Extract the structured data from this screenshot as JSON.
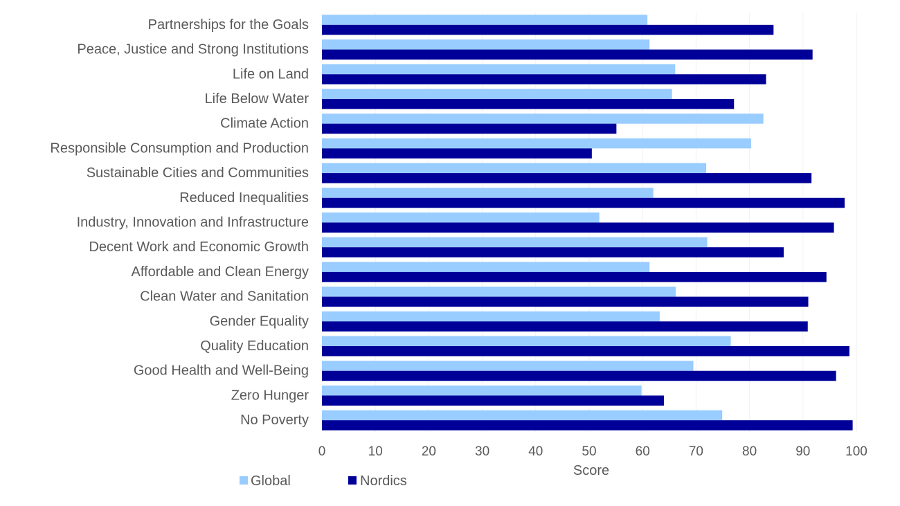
{
  "chart_data": {
    "type": "bar",
    "orientation": "horizontal",
    "categories": [
      "No Poverty",
      "Zero Hunger",
      "Good Health and Well-Being",
      "Quality Education",
      "Gender Equality",
      "Clean Water and Sanitation",
      "Affordable and Clean Energy",
      "Decent Work and Economic Growth",
      "Industry, Innovation and Infrastructure",
      "Reduced Inequalities",
      "Sustainable Cities and Communities",
      "Responsible Consumption and Production",
      "Climate Action",
      "Life Below Water",
      "Life on Land",
      "Peace, Justice and Strong Institutions",
      "Partnerships for the Goals"
    ],
    "series": [
      {
        "name": "Global",
        "color": "#99ccff",
        "values": [
          74.9,
          59.8,
          69.5,
          76.5,
          63.2,
          66.2,
          61.3,
          72.1,
          51.9,
          62.0,
          71.9,
          80.3,
          82.6,
          65.5,
          66.1,
          61.3,
          60.9
        ]
      },
      {
        "name": "Nordics",
        "color": "#000099",
        "values": [
          99.3,
          64.0,
          96.2,
          98.7,
          90.9,
          91.0,
          94.4,
          86.4,
          95.8,
          97.8,
          91.6,
          50.5,
          55.1,
          77.1,
          83.1,
          91.8,
          84.5
        ]
      }
    ],
    "xlabel": "Score",
    "ylabel": "",
    "xlim": [
      0,
      100
    ],
    "x_ticks": [
      0,
      10,
      20,
      30,
      40,
      50,
      60,
      70,
      80,
      90,
      100
    ],
    "grid": true,
    "legend": "bottom-left"
  }
}
